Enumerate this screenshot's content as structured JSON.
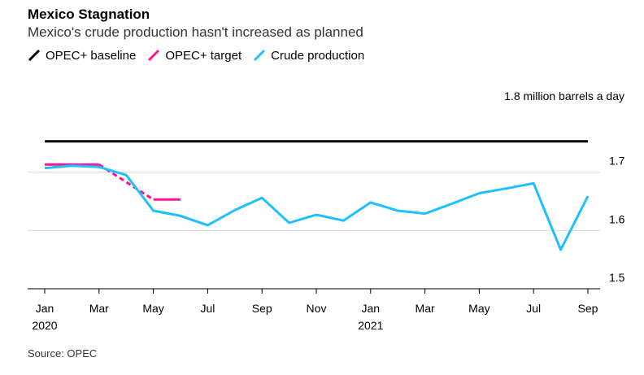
{
  "title": "Mexico Stagnation",
  "subtitle": "Mexico's crude production hasn't increased as planned",
  "source": "Source: OPEC",
  "colors": {
    "baseline": "#000000",
    "target": "#ff1493",
    "production": "#1ec0ff",
    "grid": "#d9d9d9"
  },
  "chart_data": {
    "type": "line",
    "y_unit_label": "1.8 million barrels a day",
    "ylim": [
      1.5,
      1.8
    ],
    "yticks": [
      1.5,
      1.6,
      1.7
    ],
    "xlim": [
      "2020-01",
      "2021-09"
    ],
    "xticks": [
      {
        "x": "2020-01",
        "label": "Jan",
        "year": "2020"
      },
      {
        "x": "2020-03",
        "label": "Mar"
      },
      {
        "x": "2020-05",
        "label": "May"
      },
      {
        "x": "2020-07",
        "label": "Jul"
      },
      {
        "x": "2020-09",
        "label": "Sep"
      },
      {
        "x": "2020-11",
        "label": "Nov"
      },
      {
        "x": "2021-01",
        "label": "Jan",
        "year": "2021"
      },
      {
        "x": "2021-03",
        "label": "Mar"
      },
      {
        "x": "2021-05",
        "label": "May"
      },
      {
        "x": "2021-07",
        "label": "Jul"
      },
      {
        "x": "2021-09",
        "label": "Sep"
      }
    ],
    "grid": true,
    "legend_position": "top-left",
    "series": [
      {
        "name": "OPEC+ baseline",
        "color": "#000000",
        "points": [
          [
            "2020-01",
            1.753
          ],
          [
            "2021-09",
            1.753
          ]
        ]
      },
      {
        "name": "OPEC+ target",
        "color": "#ff1493",
        "segments": [
          {
            "style": "solid",
            "points": [
              [
                "2020-01",
                1.713
              ],
              [
                "2020-03",
                1.713
              ]
            ]
          },
          {
            "style": "dashed",
            "points": [
              [
                "2020-03",
                1.713
              ],
              [
                "2020-05",
                1.653
              ]
            ]
          },
          {
            "style": "solid",
            "points": [
              [
                "2020-05",
                1.653
              ],
              [
                "2020-06",
                1.653
              ]
            ]
          }
        ]
      },
      {
        "name": "Crude production",
        "color": "#1ec0ff",
        "points": [
          [
            "2020-01",
            1.707
          ],
          [
            "2020-02",
            1.711
          ],
          [
            "2020-03",
            1.709
          ],
          [
            "2020-04",
            1.695
          ],
          [
            "2020-05",
            1.634
          ],
          [
            "2020-06",
            1.625
          ],
          [
            "2020-07",
            1.609
          ],
          [
            "2020-08",
            1.635
          ],
          [
            "2020-09",
            1.656
          ],
          [
            "2020-10",
            1.613
          ],
          [
            "2020-11",
            1.627
          ],
          [
            "2020-12",
            1.617
          ],
          [
            "2021-01",
            1.648
          ],
          [
            "2021-02",
            1.634
          ],
          [
            "2021-03",
            1.629
          ],
          [
            "2021-04",
            1.646
          ],
          [
            "2021-05",
            1.664
          ],
          [
            "2021-06",
            1.672
          ],
          [
            "2021-07",
            1.681
          ],
          [
            "2021-08",
            1.567
          ],
          [
            "2021-09",
            1.659
          ]
        ]
      }
    ]
  }
}
